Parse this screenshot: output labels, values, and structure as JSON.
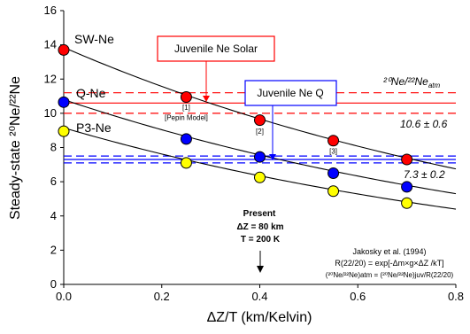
{
  "chart_data": {
    "type": "scatter",
    "xlabel": "ΔZ/T (km/Kelvin)",
    "ylabel": "Steady-state ²⁰Ne/²²Ne",
    "xlim": [
      0,
      0.8
    ],
    "ylim": [
      0,
      16
    ],
    "x_ticks": [
      "0.0",
      "0.2",
      "0.4",
      "0.6",
      "0.8"
    ],
    "y_ticks": [
      "0",
      "2",
      "4",
      "6",
      "8",
      "10",
      "12",
      "14",
      "16"
    ],
    "series": [
      {
        "name": "SW-Ne",
        "color": "#ff0000",
        "points": [
          {
            "x": 0.0,
            "y": 13.7
          },
          {
            "x": 0.25,
            "y": 10.95
          },
          {
            "x": 0.4,
            "y": 9.6
          },
          {
            "x": 0.55,
            "y": 8.4
          },
          {
            "x": 0.7,
            "y": 7.3
          }
        ],
        "curve": [
          13.85,
          6.75
        ]
      },
      {
        "name": "Q-Ne",
        "color": "#0000ff",
        "points": [
          {
            "x": 0.0,
            "y": 10.65
          },
          {
            "x": 0.25,
            "y": 8.5
          },
          {
            "x": 0.4,
            "y": 7.45
          },
          {
            "x": 0.55,
            "y": 6.5
          },
          {
            "x": 0.7,
            "y": 5.7
          }
        ],
        "curve": [
          10.8,
          5.3
        ]
      },
      {
        "name": "P3-Ne",
        "color": "#ffff00",
        "points": [
          {
            "x": 0.0,
            "y": 8.95
          },
          {
            "x": 0.25,
            "y": 7.1
          },
          {
            "x": 0.4,
            "y": 6.25
          },
          {
            "x": 0.55,
            "y": 5.45
          },
          {
            "x": 0.7,
            "y": 4.75
          }
        ],
        "curve": [
          9.15,
          4.4
        ]
      }
    ],
    "reference_lines": [
      {
        "y": 11.2,
        "color": "#ff0000",
        "style": "dashed"
      },
      {
        "y": 10.6,
        "color": "#ff0000",
        "style": "solid"
      },
      {
        "y": 10.0,
        "color": "#ff0000",
        "style": "dashed"
      },
      {
        "y": 7.5,
        "color": "#0000ff",
        "style": "dashed"
      },
      {
        "y": 7.3,
        "color": "#0000ff",
        "style": "solid"
      },
      {
        "y": 7.1,
        "color": "#0000ff",
        "style": "dashed"
      }
    ],
    "point_labels": [
      {
        "text": "[1]",
        "x": 0.25,
        "y": 10.2
      },
      {
        "text": "[Pepin Model]",
        "x": 0.25,
        "y": 9.6
      },
      {
        "text": "[2]",
        "x": 0.4,
        "y": 8.8
      },
      {
        "text": "[3]",
        "x": 0.55,
        "y": 7.65
      }
    ],
    "annotations": {
      "solar_box": "Juvenile Ne Solar",
      "q_box": "Juvenile Ne Q",
      "atm_label": "²⁰Ne/²²Ne",
      "atm_label_sub": "atm",
      "solar_value": "10.6 ± 0.6",
      "q_value": "7.3 ± 0.2",
      "present_title": "Present",
      "present_dz": "ΔZ = 80 km",
      "present_t": "T = 200 K",
      "ref_author": "Jakosky et al. (1994)",
      "ref_eq1": "R(22/20) = exp[-Δm×g×ΔZ /kT]",
      "ref_eq2": "(²⁰Ne/²²Ne)atm = (²⁰Ne/²²Ne)juv/R(22/20)"
    }
  }
}
